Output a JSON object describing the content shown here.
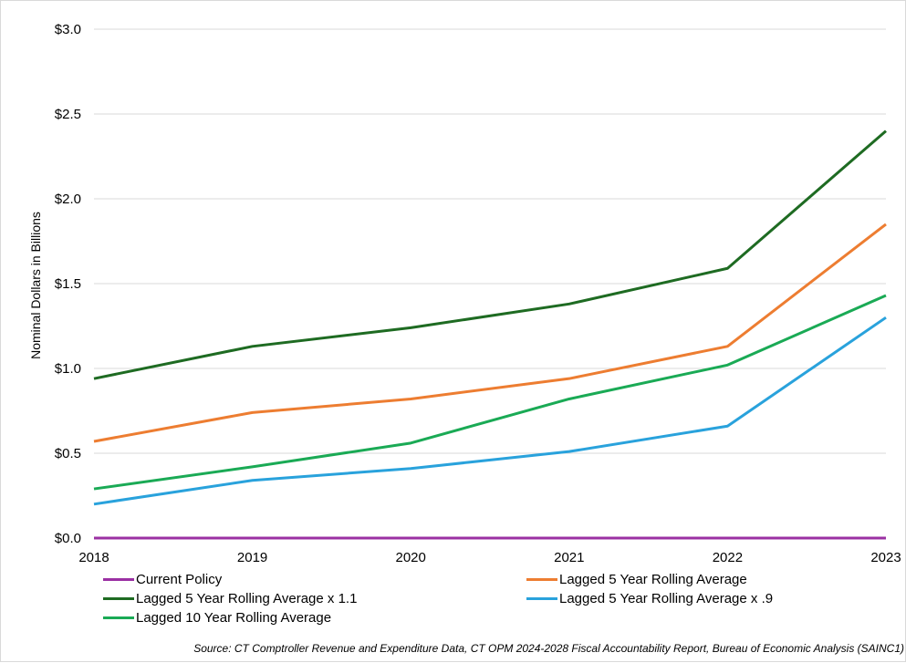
{
  "chart_data": {
    "type": "line",
    "title": "",
    "xlabel": "",
    "ylabel": "Nominal Dollars in Billions",
    "x": [
      "2018",
      "2019",
      "2020",
      "2021",
      "2022",
      "2023"
    ],
    "ylim": [
      0,
      3.0
    ],
    "yticks": [
      0,
      0.5,
      1.0,
      1.5,
      2.0,
      2.5,
      3.0
    ],
    "ytick_labels": [
      "$0.0",
      "$0.5",
      "$1.0",
      "$1.5",
      "$2.0",
      "$2.5",
      "$3.0"
    ],
    "grid": true,
    "legend_position": "bottom",
    "series": [
      {
        "name": "Current Policy",
        "color": "#9b30a3",
        "values": [
          0,
          0,
          0,
          0,
          0,
          0
        ]
      },
      {
        "name": "Lagged 5 Year Rolling Average",
        "color": "#ed7d31",
        "values": [
          0.57,
          0.74,
          0.82,
          0.94,
          1.13,
          1.85
        ]
      },
      {
        "name": "Lagged 5 Year Rolling Average x 1.1",
        "color": "#1e6b22",
        "values": [
          0.94,
          1.13,
          1.24,
          1.38,
          1.59,
          2.4
        ]
      },
      {
        "name": "Lagged 5 Year Rolling Average x .9",
        "color": "#29a2dc",
        "values": [
          0.2,
          0.34,
          0.41,
          0.51,
          0.66,
          1.3
        ]
      },
      {
        "name": "Lagged 10 Year Rolling Average",
        "color": "#1aaa55",
        "values": [
          0.29,
          0.42,
          0.56,
          0.82,
          1.02,
          1.43
        ]
      }
    ]
  },
  "source": "Source: CT Comptroller Revenue and Expenditure Data, CT OPM 2024-2028 Fiscal Accountability Report, Bureau of Economic Analysis (SAINC1)"
}
